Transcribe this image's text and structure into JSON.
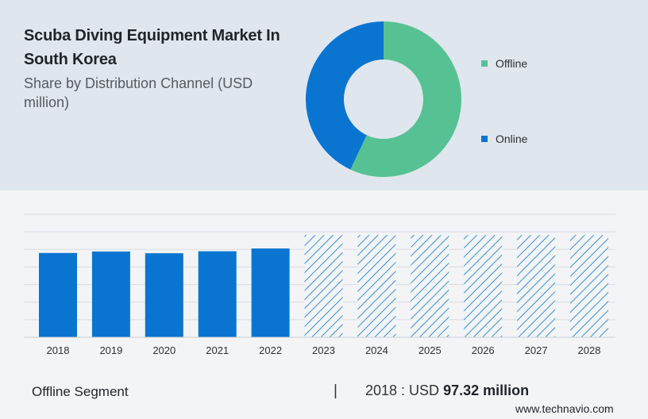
{
  "header": {
    "title": "Scuba Diving Equipment Market In South Korea",
    "subtitle": "Share by Distribution Channel (USD million)"
  },
  "colors": {
    "offline": "#56c293",
    "online": "#0a75d1",
    "bar": "#0a75d1",
    "hatch": "#0a75d1"
  },
  "chart_data": [
    {
      "type": "pie",
      "donut": true,
      "title": "",
      "slices": [
        {
          "label": "Offline",
          "value": 57,
          "color": "#56c293"
        },
        {
          "label": "Online",
          "value": 43,
          "color": "#0a75d1"
        }
      ],
      "legend": [
        "Offline",
        "Online"
      ],
      "legend_position": "right"
    },
    {
      "type": "bar",
      "categories": [
        "2018",
        "2019",
        "2020",
        "2021",
        "2022",
        "2023",
        "2024",
        "2025",
        "2026",
        "2027",
        "2028"
      ],
      "values": [
        97.32,
        99.0,
        97.0,
        99.3,
        102.5,
        null,
        null,
        null,
        null,
        null,
        null
      ],
      "forecast": [
        false,
        false,
        false,
        false,
        false,
        true,
        true,
        true,
        true,
        true,
        true
      ],
      "forecast_level": 118,
      "ylim": [
        0,
        142
      ],
      "grid": true,
      "xlabel": "",
      "ylabel": ""
    }
  ],
  "footer": {
    "segment_label": "Offline Segment",
    "separator": "|",
    "value_prefix": "2018 : USD ",
    "value_bold": "97.32 million",
    "brand": "www.technavio.com"
  }
}
